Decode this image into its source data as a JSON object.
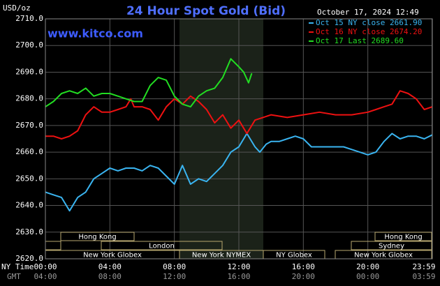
{
  "chart_data": {
    "type": "line",
    "title": "24 Hour Spot Gold (Bid)",
    "timestamp": "October 17, 2024 12:49",
    "unit_label": "USD/oz",
    "watermark": "www.kitco.com",
    "x_label": "NY Time",
    "x2_label": "GMT",
    "xlim": [
      0,
      24
    ],
    "xticks": [
      {
        "value": 0,
        "label": "00:00"
      },
      {
        "value": 4,
        "label": "04:00"
      },
      {
        "value": 8,
        "label": "08:00"
      },
      {
        "value": 12,
        "label": "12:00"
      },
      {
        "value": 16,
        "label": "16:00"
      },
      {
        "value": 20,
        "label": "20:00"
      },
      {
        "value": 23.983,
        "label": "23:59"
      }
    ],
    "x2ticklabels": [
      "04:00",
      "08:00",
      "12:00",
      "16:00",
      "20:00",
      "00:00",
      "03:59"
    ],
    "ylim": [
      2620,
      2710
    ],
    "yticks": [
      {
        "value": 2620,
        "label": "2620.0"
      },
      {
        "value": 2630,
        "label": "2630.0"
      },
      {
        "value": 2640,
        "label": "2640.0"
      },
      {
        "value": 2650,
        "label": "2650.0"
      },
      {
        "value": 2660,
        "label": "2660.0"
      },
      {
        "value": 2670,
        "label": "2670.0"
      },
      {
        "value": 2680,
        "label": "2680.0"
      },
      {
        "value": 2690,
        "label": "2690.0"
      },
      {
        "value": 2700,
        "label": "2700.0"
      },
      {
        "value": 2710,
        "label": "2710.0"
      }
    ],
    "grid": true,
    "series": [
      {
        "name": "Oct 15 NY close 2661.90",
        "color": "#3ab4f0",
        "x": [
          0,
          0.5,
          1,
          1.5,
          2,
          2.5,
          3,
          3.5,
          4,
          4.5,
          5,
          5.5,
          6,
          6.5,
          7,
          7.5,
          8,
          8.5,
          9,
          9.5,
          10,
          10.5,
          11,
          11.5,
          12,
          12.5,
          13,
          13.3,
          13.7,
          14,
          14.5,
          15,
          15.5,
          16,
          16.5,
          17,
          17.5,
          18,
          18.5,
          19,
          19.5,
          20,
          20.5,
          21,
          21.5,
          22,
          22.5,
          23,
          23.5,
          24
        ],
        "values": [
          2645,
          2644,
          2643,
          2638,
          2643,
          2645,
          2650,
          2652,
          2654,
          2653,
          2654,
          2654,
          2653,
          2655,
          2654,
          2651,
          2648,
          2655,
          2648,
          2650,
          2649,
          2652,
          2655,
          2660,
          2662,
          2667,
          2662,
          2660,
          2663,
          2664,
          2664,
          2665,
          2666,
          2665,
          2662,
          2662,
          2662,
          2662,
          2662,
          2661,
          2660,
          2659,
          2660,
          2664,
          2667,
          2665,
          2666,
          2666,
          2665,
          2666.5
        ]
      },
      {
        "name": "Oct 16 NY close 2674.20",
        "color": "#ee1111",
        "x": [
          0,
          0.5,
          1,
          1.5,
          2,
          2.5,
          3,
          3.5,
          4,
          4.5,
          5,
          5.3,
          5.5,
          6,
          6.5,
          7,
          7.5,
          8,
          8.5,
          9,
          9.5,
          10,
          10.5,
          11,
          11.5,
          12,
          12.5,
          13,
          13.5,
          14,
          15,
          16,
          17,
          18,
          19,
          20,
          20.5,
          21,
          21.5,
          22,
          22.5,
          23,
          23.5,
          24
        ],
        "values": [
          2666,
          2666,
          2665,
          2666,
          2668,
          2674,
          2677,
          2675,
          2675,
          2676,
          2677,
          2680,
          2677,
          2677,
          2676,
          2672,
          2677,
          2680,
          2678,
          2681,
          2679,
          2676,
          2671,
          2674,
          2669,
          2672,
          2667,
          2672,
          2673,
          2674,
          2673,
          2674,
          2675,
          2674,
          2674,
          2675,
          2676,
          2677,
          2678,
          2683,
          2682,
          2680,
          2676,
          2677
        ]
      },
      {
        "name": "Oct 17 Last 2689.60",
        "color": "#22dd22",
        "x": [
          0,
          0.5,
          1,
          1.5,
          2,
          2.5,
          3,
          3.5,
          4,
          4.5,
          5,
          5.5,
          6,
          6.5,
          7,
          7.5,
          8,
          8.5,
          9,
          9.5,
          10,
          10.5,
          11,
          11.5,
          12,
          12.3,
          12.6,
          12.8
        ],
        "values": [
          2677,
          2679,
          2682,
          2683,
          2682,
          2684,
          2681,
          2682,
          2682,
          2681,
          2680,
          2679,
          2679,
          2685,
          2688,
          2687,
          2681,
          2678,
          2677,
          2681,
          2683,
          2684,
          2688,
          2695,
          2692,
          2690,
          2686,
          2689.6
        ]
      }
    ],
    "sessions": [
      {
        "label": "Hong Kong"
      },
      {
        "label": "London"
      },
      {
        "label": "New York Globex"
      },
      {
        "label": "New York NYMEX"
      },
      {
        "label": "NY Globex"
      },
      {
        "label": "Hong Kong"
      },
      {
        "label": "Sydney"
      },
      {
        "label": "New York Globex"
      }
    ]
  }
}
